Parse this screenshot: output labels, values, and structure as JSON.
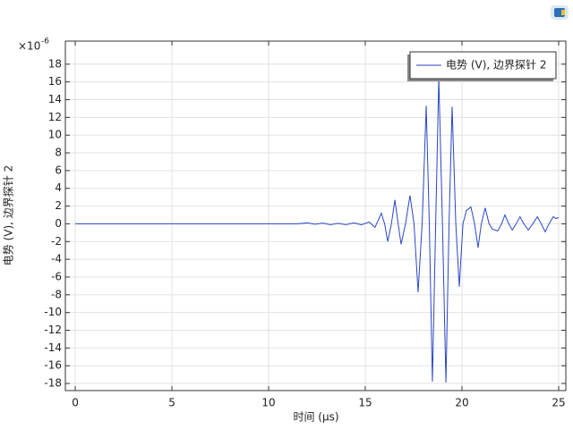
{
  "chart_data": {
    "type": "line",
    "x_label": "时间 (μs)",
    "y_label": "电势 (V), 边界探针 2",
    "y_scale_label": "×10",
    "y_scale_exponent": "-6",
    "xlim": [
      -0.51,
      25.37
    ],
    "ylim": [
      -18.8,
      20.6
    ],
    "xticks": [
      0,
      5,
      10,
      15,
      20,
      25
    ],
    "yticks": [
      -18,
      -16,
      -14,
      -12,
      -10,
      -8,
      -6,
      -4,
      -2,
      0,
      2,
      4,
      6,
      8,
      10,
      12,
      14,
      16,
      18
    ],
    "grid": true,
    "legend": "upper right",
    "x": [
      0,
      11.5,
      12,
      12.4,
      12.8,
      13.2,
      13.6,
      14,
      14.4,
      14.8,
      15.2,
      15.5,
      15.83,
      16.0,
      16.16,
      16.35,
      16.53,
      16.7,
      16.85,
      17.08,
      17.31,
      17.52,
      17.73,
      17.94,
      18.15,
      18.31,
      18.47,
      18.64,
      18.8,
      18.99,
      19.17,
      19.33,
      19.49,
      19.68,
      19.86,
      20.05,
      20.23,
      20.46,
      20.65,
      20.83,
      21.0,
      21.2,
      21.4,
      21.57,
      21.85,
      22.05,
      22.22,
      22.42,
      22.6,
      22.8,
      23.0,
      23.2,
      23.43,
      23.66,
      23.9,
      24.1,
      24.3,
      24.5,
      24.72,
      24.86,
      25
    ],
    "series": [
      {
        "name": "电势 (V), 边界探针 2",
        "color": "#2a46c4",
        "values": [
          0,
          0,
          0.1,
          -0.05,
          0.08,
          -0.1,
          0.05,
          -0.1,
          0.1,
          -0.1,
          0.2,
          -0.4,
          1.2,
          0,
          -2.0,
          0,
          2.7,
          0,
          -2.3,
          0,
          3.2,
          0,
          -7.7,
          0,
          13.3,
          0,
          -17.8,
          0,
          16.5,
          0,
          -17.9,
          0,
          13.2,
          0,
          -7.1,
          0,
          1.5,
          1.9,
          0,
          -2.7,
          0,
          1.8,
          0,
          -0.6,
          -0.8,
          0,
          1.0,
          0,
          -0.7,
          0,
          0.8,
          0,
          -0.7,
          0,
          0.8,
          0,
          -0.9,
          0,
          0.8,
          0.6,
          0.7
        ]
      }
    ]
  }
}
